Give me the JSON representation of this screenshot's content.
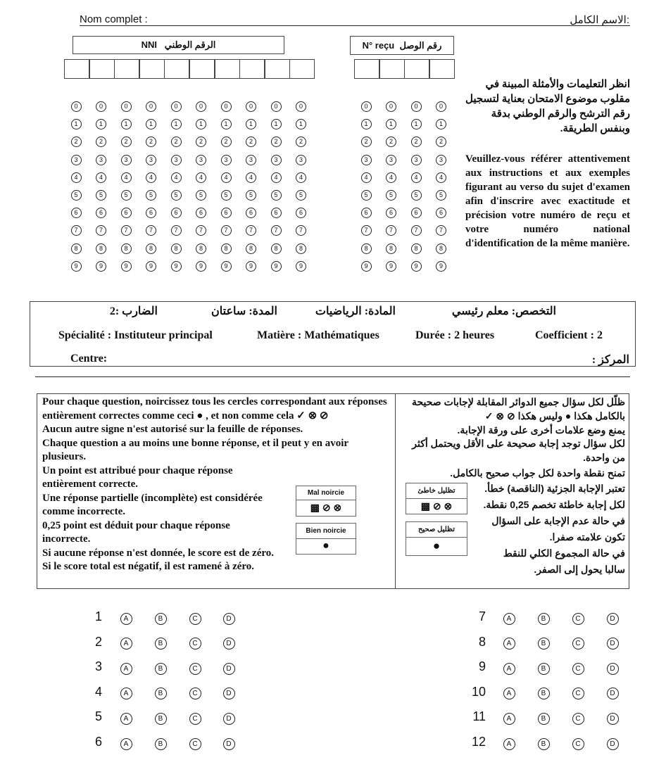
{
  "header": {
    "name_label_fr": "Nom complet :",
    "name_label_ar": "الاسم الكامل:"
  },
  "nni": {
    "label_fr": "NNI",
    "label_ar": "الرقم الوطني",
    "digits": 10
  },
  "receipt": {
    "label_fr": "N° reçu",
    "label_ar": "رقم الوصل",
    "digits": 4
  },
  "bubble_digits": [
    "0",
    "1",
    "2",
    "3",
    "4",
    "5",
    "6",
    "7",
    "8",
    "9"
  ],
  "instructions_ar": "انظر التعليمات والأمثلة المبينة في مقلوب موضوع الامتحان بعناية لتسجيل رقم الترشح والرقم الوطني بدقة وبنفس الطريقة.",
  "instructions_fr": "Veuillez-vous référer attentivement aux instructions et aux exemples figurant au verso du sujet d'examen afin d'inscrire avec exactitude et précision votre numéro de reçu et votre numéro national d'identification de la même manière.",
  "exam": {
    "ar": {
      "specialty": "التخصص: معلم رئيسي",
      "subject": "المادة: الرياضيات",
      "duration": "المدة: ساعتان",
      "coef": "الضارب :2",
      "center": "المركز :"
    },
    "fr": {
      "specialty": "Spécialité : Instituteur principal",
      "subject": "Matière : Mathématiques",
      "duration": "Durée : 2 heures",
      "coef": "Coefficient : 2",
      "center": "Centre:"
    }
  },
  "rules_fr": {
    "p1": "Pour chaque question, noircissez tous les cercles correspondant aux réponses entièrement correctes comme ceci ●  , et non comme cela ✓ ⊗ ⊘",
    "p2": "Aucun autre signe n'est autorisé sur la feuille de réponses.",
    "p3": "Chaque question a au moins une bonne réponse, et il peut y en avoir plusieurs.",
    "p4": "Un point est attribué pour chaque réponse entièrement correcte.",
    "p5": "Une réponse partielle (incomplète) est considérée comme incorrecte.",
    "p6": "0,25 point est déduit pour chaque réponse incorrecte.",
    "p7": "Si aucune réponse n'est donnée, le score est de zéro.",
    "p8": "Si le score total est négatif, il est ramené à zéro.",
    "bad_label": "Mal noircie",
    "good_label": "Bien noircie"
  },
  "rules_ar": {
    "p1": "ظلّل لكل سؤال جميع الدوائر المقابلة لإجابات صحيحة بالكامل هكذا ● وليس هكذا ⊘ ⊗ ✓",
    "p2": "يمنع وضع علامات أخرى على ورقة الإجابة.",
    "p3": "لكل سؤال توجد إجابة صحيحة على الأقل ويحتمل أكثر من واحدة.",
    "p4": "تمنح نقطة واحدة لكل جواب صحيح بالكامل.",
    "p5": "تعتبر الإجابة الجزئية (الناقصة) خطأ.",
    "p6": "لكل إجابة خاطئة تخصم 0,25 نقطة.",
    "p7": "في حالة عدم الإجابة على السؤال تكون علامته صفرا.",
    "p8": "في حالة المجموع الكلي للنقط سالبا يحول إلى الصفر.",
    "bad_label": "تظليل خاطئ",
    "good_label": "تظليل صحيح"
  },
  "questions": [
    "1",
    "2",
    "3",
    "4",
    "5",
    "6",
    "7",
    "8",
    "9",
    "10",
    "11",
    "12"
  ],
  "options": [
    "A",
    "B",
    "C",
    "D"
  ]
}
